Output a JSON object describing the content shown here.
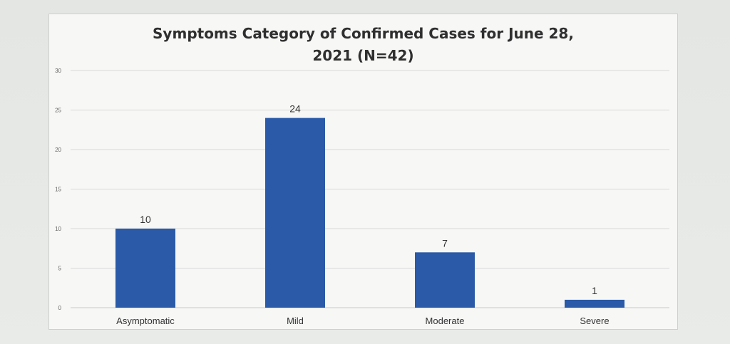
{
  "chart_data": {
    "type": "bar",
    "title_lines": [
      "Symptoms Category of Confirmed Cases for  June 28,",
      "2021 (N=42)"
    ],
    "categories": [
      "Asymptomatic",
      "Mild",
      "Moderate",
      "Severe"
    ],
    "values": [
      10,
      24,
      7,
      1
    ],
    "data_labels": [
      "10",
      "24",
      "7",
      "1"
    ],
    "ylim": [
      0,
      30
    ],
    "yticks": [
      0,
      5,
      10,
      15,
      20,
      25,
      30
    ],
    "grid": true,
    "legend": "none",
    "colors": {
      "bar": "#2a5aa8"
    }
  }
}
